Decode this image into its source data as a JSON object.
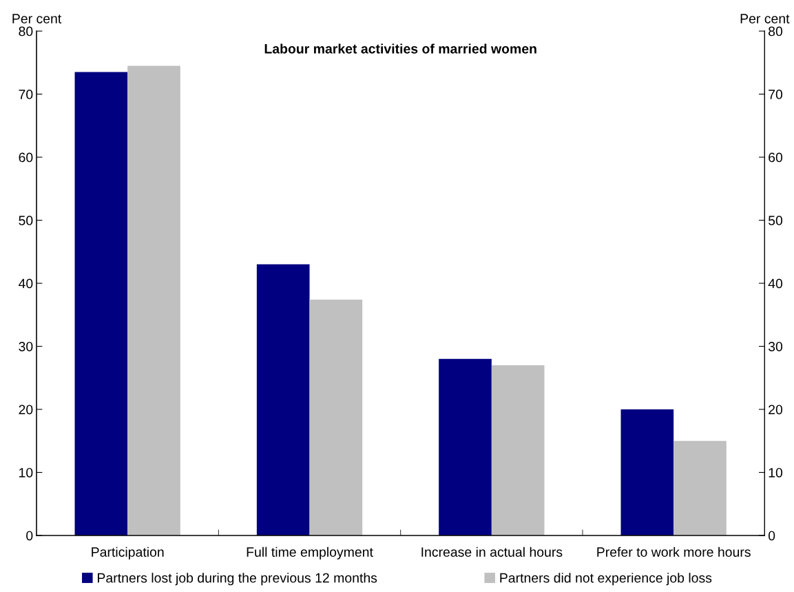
{
  "chart_data": {
    "type": "bar",
    "title": "Labour market activities of married women",
    "ylabel": "Per cent",
    "y2label": "Per cent",
    "categories": [
      "Participation",
      "Full time employment",
      "Increase in actual hours",
      "Prefer to work more hours"
    ],
    "series": [
      {
        "name": "Partners lost job during the previous 12 months",
        "color": "#000080",
        "values": [
          73.5,
          43,
          28,
          20
        ]
      },
      {
        "name": "Partners did not experience job loss",
        "color": "#c0c0c0",
        "values": [
          74.5,
          37.4,
          27,
          15
        ]
      }
    ],
    "ylim": [
      0,
      80
    ],
    "yticks": [
      0,
      10,
      20,
      30,
      40,
      50,
      60,
      70,
      80
    ],
    "y2lim": [
      0,
      80
    ],
    "y2ticks": [
      0,
      10,
      20,
      30,
      40,
      50,
      60,
      70,
      80
    ],
    "grid": false,
    "legend": "bottom"
  }
}
